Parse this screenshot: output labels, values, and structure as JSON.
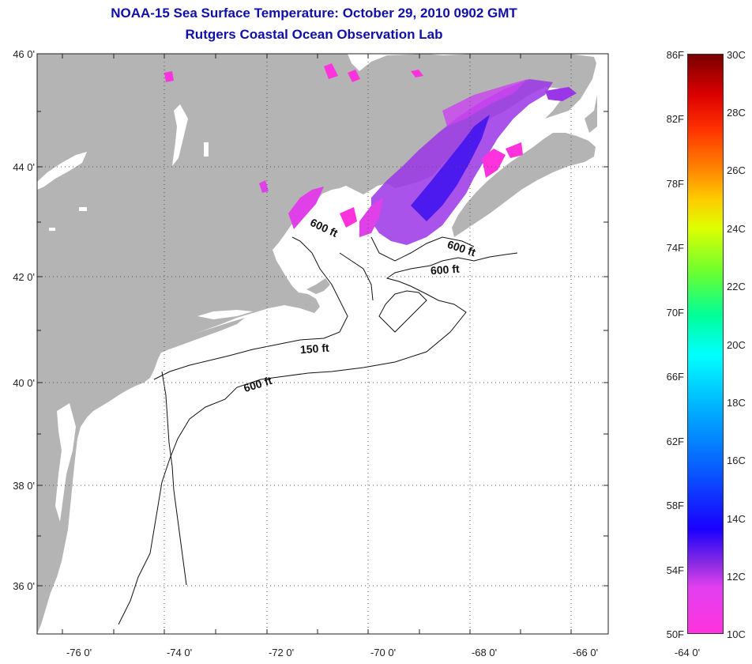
{
  "title": {
    "line1": "NOAA-15 Sea Surface Temperature:  October 29, 2010 0902 GMT",
    "line2": "Rutgers Coastal Ocean Observation Lab"
  },
  "map": {
    "lat_labels": [
      "46 0'",
      "44 0'",
      "42 0'",
      "40 0'",
      "38 0'",
      "36 0'"
    ],
    "lon_labels": [
      "-76 0'",
      "-74 0'",
      "-72 0'",
      "-70 0'",
      "-68 0'",
      "-66 0'",
      "-64 0'"
    ],
    "contour_labels": [
      "600 ft",
      "600 ft",
      "600 ft",
      "150 ft",
      "600 ft"
    ],
    "land_color": "#b4b4b4",
    "ocean_color": "#ffffff"
  },
  "colorbar": {
    "fahrenheit": [
      "86F",
      "82F",
      "78F",
      "74F",
      "70F",
      "66F",
      "62F",
      "58F",
      "54F",
      "50F"
    ],
    "celsius": [
      "30C",
      "28C",
      "26C",
      "24C",
      "22C",
      "20C",
      "18C",
      "16C",
      "14C",
      "12C",
      "10C"
    ]
  }
}
